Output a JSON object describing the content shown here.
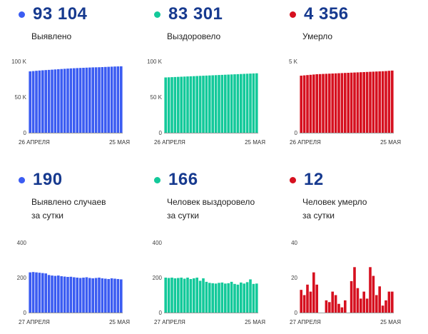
{
  "panels": [
    {
      "value": "93 104",
      "label": [
        "Выявлено"
      ],
      "color": "#3b5cf2",
      "chart_data": {
        "type": "bar",
        "y_ticks": [
          "100 K",
          "50 K",
          "0"
        ],
        "ylim": [
          0,
          100000
        ],
        "x_start_label": "26 АПРЕЛЯ",
        "x_end_label": "25 МАЯ",
        "values": [
          86000,
          86400,
          86800,
          87200,
          87500,
          87800,
          88100,
          88400,
          88700,
          89000,
          89300,
          89600,
          89900,
          90200,
          90400,
          90600,
          90800,
          91000,
          91200,
          91400,
          91600,
          91700,
          91800,
          92000,
          92200,
          92400,
          92600,
          92800,
          92950,
          93104
        ]
      }
    },
    {
      "value": "83 301",
      "label": [
        "Выздоровело"
      ],
      "color": "#13c99a",
      "chart_data": {
        "type": "bar",
        "y_ticks": [
          "100 K",
          "50 K",
          "0"
        ],
        "ylim": [
          0,
          100000
        ],
        "x_start_label": "26 АПРЕЛЯ",
        "x_end_label": "25 МАЯ",
        "values": [
          77500,
          77700,
          77900,
          78100,
          78300,
          78500,
          78700,
          78900,
          79100,
          79300,
          79500,
          79700,
          79900,
          80100,
          80300,
          80500,
          80700,
          80900,
          81100,
          81300,
          81500,
          81700,
          81900,
          82100,
          82300,
          82500,
          82700,
          82900,
          83100,
          83301
        ]
      }
    },
    {
      "value": "4 356",
      "label": [
        "Умерло"
      ],
      "color": "#d6101f",
      "chart_data": {
        "type": "bar",
        "y_ticks": [
          "5 K",
          "0"
        ],
        "ylim": [
          0,
          5000
        ],
        "x_start_label": "26 АПРЕЛЯ",
        "x_end_label": "25 МАЯ",
        "values": [
          4000,
          4020,
          4040,
          4060,
          4080,
          4100,
          4110,
          4120,
          4130,
          4140,
          4150,
          4160,
          4170,
          4180,
          4190,
          4200,
          4210,
          4220,
          4230,
          4240,
          4250,
          4260,
          4270,
          4280,
          4290,
          4300,
          4310,
          4320,
          4340,
          4356
        ]
      }
    },
    {
      "value": "190",
      "label": [
        "Выявлено случаев",
        "за сутки"
      ],
      "color": "#3b5cf2",
      "chart_data": {
        "type": "bar",
        "y_ticks": [
          "400",
          "200",
          "0"
        ],
        "ylim": [
          0,
          400
        ],
        "x_start_label": "27 АПРЕЛЯ",
        "x_end_label": "25 МАЯ",
        "values": [
          230,
          232,
          230,
          228,
          226,
          224,
          215,
          212,
          210,
          212,
          208,
          206,
          204,
          205,
          202,
          200,
          198,
          200,
          202,
          198,
          196,
          198,
          200,
          196,
          194,
          192,
          196,
          194,
          192,
          190
        ]
      }
    },
    {
      "value": "166",
      "label": [
        "Человек выздоровело",
        "за сутки"
      ],
      "color": "#13c99a",
      "chart_data": {
        "type": "bar",
        "y_ticks": [
          "400",
          "200",
          "0"
        ],
        "ylim": [
          0,
          400
        ],
        "x_start_label": "27 АПРЕЛЯ",
        "x_end_label": "25 МАЯ",
        "values": [
          200,
          198,
          200,
          196,
          198,
          200,
          194,
          200,
          192,
          196,
          200,
          182,
          196,
          176,
          170,
          168,
          166,
          170,
          172,
          166,
          168,
          176,
          164,
          160,
          172,
          166,
          174,
          190,
          164,
          166
        ]
      }
    },
    {
      "value": "12",
      "label": [
        "Человек умерло",
        "за сутки"
      ],
      "color": "#d6101f",
      "chart_data": {
        "type": "bar",
        "y_ticks": [
          "40",
          "20",
          "0"
        ],
        "ylim": [
          0,
          40
        ],
        "x_start_label": "27 АПРЕЛЯ",
        "x_end_label": "25 МАЯ",
        "values": [
          13,
          10,
          16,
          12,
          23,
          16,
          0,
          0,
          7,
          6,
          12,
          10,
          5,
          3,
          7,
          0,
          18,
          26,
          14,
          8,
          12,
          8,
          26,
          21,
          10,
          15,
          4,
          7,
          12,
          12
        ]
      }
    }
  ]
}
